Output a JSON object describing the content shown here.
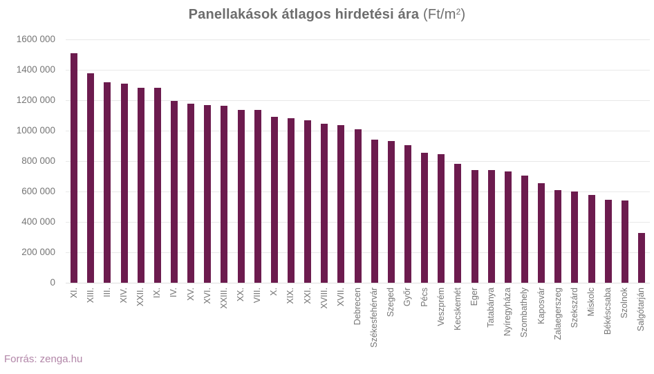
{
  "title": {
    "main": "Panellakások átlagos hirdetési ára",
    "unit_prefix": " (Ft/m",
    "unit_sup": "2",
    "unit_suffix": ")"
  },
  "source": {
    "label": "Forrás: zenga.hu"
  },
  "colors": {
    "bar": "#6c1b4e",
    "title_text": "#6d6d6d",
    "axis_text": "#757575",
    "gridline": "#e8e8e8",
    "source_text": "#b286a8",
    "background": "#ffffff"
  },
  "chart_data": {
    "type": "bar",
    "title": "Panellakások átlagos hirdetési ára (Ft/m2)",
    "xlabel": "",
    "ylabel": "",
    "ylim": [
      0,
      1600000
    ],
    "ytick_step": 200000,
    "ytick_labels": [
      "0",
      "200 000",
      "400 000",
      "600 000",
      "800 000",
      "1000 000",
      "1200 000",
      "1400 000",
      "1600 000"
    ],
    "grid": true,
    "legend": false,
    "bar_color": "#6c1b4e",
    "categories": [
      "XI.",
      "XIII.",
      "III.",
      "XIV.",
      "XXII.",
      "IX.",
      "IV.",
      "XV.",
      "XVI.",
      "XXIII.",
      "XX.",
      "VIII.",
      "X.",
      "XIX.",
      "XXI.",
      "XVIII.",
      "XVII.",
      "Debrecen",
      "Székesfehérvár",
      "Szeged",
      "Győr",
      "Pécs",
      "Veszprém",
      "Kecskemét",
      "Eger",
      "Tatabánya",
      "Nyíregyháza",
      "Szombathely",
      "Kaposvár",
      "Zalaegerszeg",
      "Szekszárd",
      "Miskolc",
      "Békéscsaba",
      "Szolnok",
      "Salgótarján"
    ],
    "values": [
      1510000,
      1375000,
      1320000,
      1310000,
      1280000,
      1280000,
      1195000,
      1175000,
      1170000,
      1165000,
      1135000,
      1135000,
      1090000,
      1080000,
      1070000,
      1045000,
      1035000,
      1010000,
      940000,
      930000,
      905000,
      855000,
      845000,
      780000,
      740000,
      740000,
      730000,
      705000,
      655000,
      610000,
      600000,
      575000,
      545000,
      540000,
      325000
    ]
  }
}
